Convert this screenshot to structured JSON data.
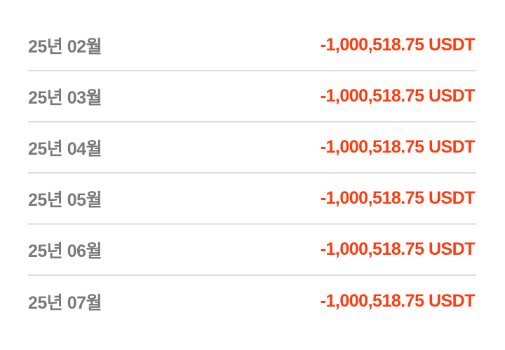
{
  "colors": {
    "month_text": "#7a7a7a",
    "amount_negative": "#ff3b0f",
    "divider": "#dedede"
  },
  "rows": [
    {
      "month": "25년 02월",
      "amount": "-1,000,518.75 USDT"
    },
    {
      "month": "25년 03월",
      "amount": "-1,000,518.75 USDT"
    },
    {
      "month": "25년 04월",
      "amount": "-1,000,518.75 USDT"
    },
    {
      "month": "25년 05월",
      "amount": "-1,000,518.75 USDT"
    },
    {
      "month": "25년 06월",
      "amount": "-1,000,518.75 USDT"
    },
    {
      "month": "25년 07월",
      "amount": "-1,000,518.75 USDT"
    }
  ]
}
